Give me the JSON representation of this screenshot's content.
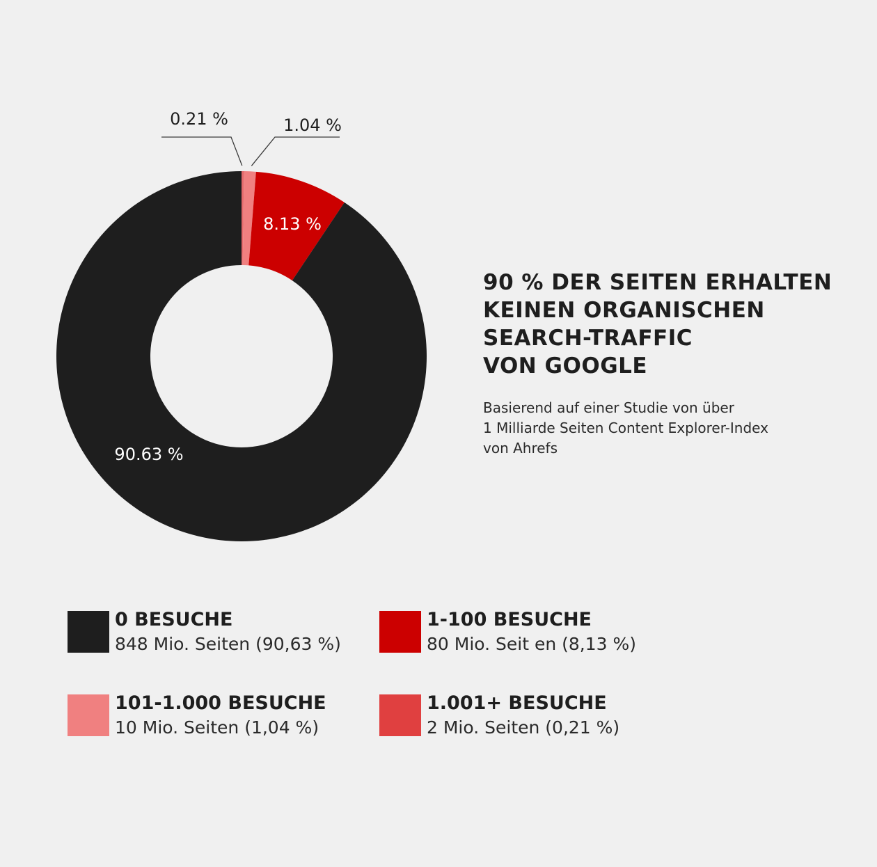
{
  "heading": {
    "lines": [
      "90 % DER SEITEN ERHALTEN",
      "KEINEN ORGANISCHEN",
      "SEARCH-TRAFFIC",
      "VON GOOGLE"
    ]
  },
  "subtext": {
    "lines": [
      "Basierend auf einer Studie von über",
      "1 Milliarde Seiten Content Explorer-Index",
      "von Ahrefs"
    ]
  },
  "chart_data": {
    "type": "pie",
    "variant": "donut",
    "unit": "%",
    "slices": [
      {
        "category": "1.001+ BESUCHE",
        "value": 0.21,
        "label": "0.21 %",
        "color": "#e46a6c",
        "label_style": "callout"
      },
      {
        "category": "101-1.000 BESUCHE",
        "value": 1.04,
        "label": "1.04 %",
        "color": "#f08080",
        "label_style": "callout"
      },
      {
        "category": "1-100 BESUCHE",
        "value": 8.13,
        "label": "8.13 %",
        "color": "#cc0000",
        "label_style": "inside"
      },
      {
        "category": "0 BESUCHE",
        "value": 90.63,
        "label": "90.63 %",
        "color": "#1e1e1e",
        "label_style": "inside"
      }
    ]
  },
  "legend": [
    {
      "title": "0 BESUCHE",
      "detail": "848 Mio. Seiten (90,63 %)",
      "color": "#1e1e1e"
    },
    {
      "title": "1-100 BESUCHE",
      "detail": "80 Mio. Seit  en (8,13 %)",
      "color": "#cc0000"
    },
    {
      "title": "101-1.000 BESUCHE",
      "detail": "10 Mio. Seiten (1,04 %)",
      "color": "#f08080"
    },
    {
      "title": "1.001+ BESUCHE",
      "detail": "2 Mio. Seiten (0,21 %)",
      "color": "#e04040"
    }
  ]
}
